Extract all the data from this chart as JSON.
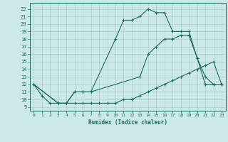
{
  "xlabel": "Humidex (Indice chaleur)",
  "bg_color": "#cce8e8",
  "line_color": "#1a6b5a",
  "grid_color": "#aad0d0",
  "xlim": [
    -0.5,
    23.5
  ],
  "ylim": [
    8.5,
    22.8
  ],
  "xticks": [
    0,
    1,
    2,
    3,
    4,
    5,
    6,
    7,
    8,
    9,
    10,
    11,
    12,
    13,
    14,
    15,
    16,
    17,
    18,
    19,
    20,
    21,
    22,
    23
  ],
  "yticks": [
    9,
    10,
    11,
    12,
    13,
    14,
    15,
    16,
    17,
    18,
    19,
    20,
    21,
    22
  ],
  "series": [
    {
      "x": [
        0,
        1,
        2,
        3,
        4,
        5,
        6,
        7,
        10,
        11,
        12,
        13,
        14,
        15,
        16,
        17,
        18,
        19,
        20,
        21,
        22
      ],
      "y": [
        12,
        10.5,
        9.5,
        9.5,
        9.5,
        11,
        11,
        11,
        18,
        20.5,
        20.5,
        21,
        22,
        21.5,
        21.5,
        19,
        19,
        19,
        15.5,
        13,
        12
      ]
    },
    {
      "x": [
        0,
        3,
        4,
        5,
        6,
        7,
        13,
        14,
        15,
        16,
        17,
        18,
        19,
        20,
        21,
        22,
        23
      ],
      "y": [
        12,
        9.5,
        9.5,
        11,
        11,
        11,
        13,
        16,
        17,
        18,
        18,
        18.5,
        18.5,
        15.5,
        12,
        12,
        12
      ]
    },
    {
      "x": [
        0,
        3,
        4,
        5,
        6,
        7,
        8,
        9,
        10,
        11,
        12,
        13,
        14,
        15,
        16,
        17,
        18,
        19,
        20,
        21,
        22,
        23
      ],
      "y": [
        12,
        9.5,
        9.5,
        9.5,
        9.5,
        9.5,
        9.5,
        9.5,
        9.5,
        10,
        10,
        10.5,
        11,
        11.5,
        12,
        12.5,
        13,
        13.5,
        14,
        14.5,
        15,
        12
      ]
    }
  ]
}
